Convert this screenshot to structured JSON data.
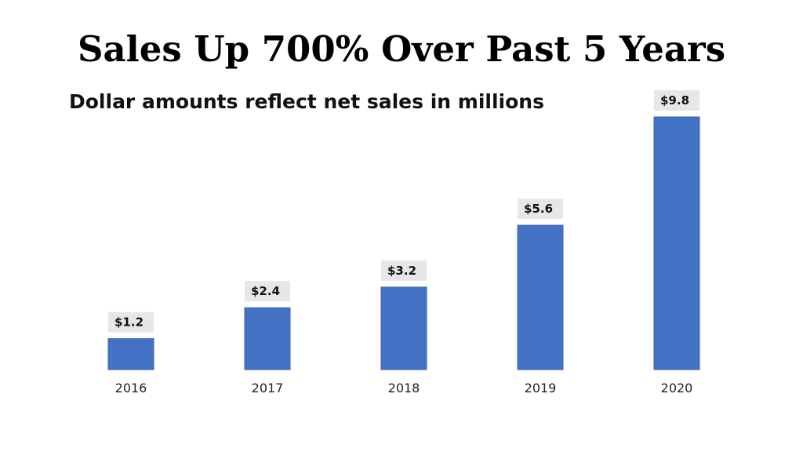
{
  "title": "Sales Up 700% Over Past 5 Years",
  "subtitle": "Dollar amounts reflect net sales in millions",
  "colors": {
    "bar": "#4472c4",
    "label_background": "#e7e7e7"
  },
  "chart_data": {
    "type": "bar",
    "categories": [
      "2016",
      "2017",
      "2018",
      "2019",
      "2020"
    ],
    "values": [
      1.2,
      2.4,
      3.2,
      5.6,
      9.8
    ],
    "data_labels": [
      "$1.2",
      "$2.4",
      "$3.2",
      "$5.6",
      "$9.8"
    ],
    "title": "Sales Up 700% Over Past 5 Years",
    "subtitle": "Dollar amounts reflect net sales in millions",
    "xlabel": "",
    "ylabel": "",
    "ylim": [
      0,
      9.8
    ],
    "grid": false,
    "legend": "none"
  }
}
